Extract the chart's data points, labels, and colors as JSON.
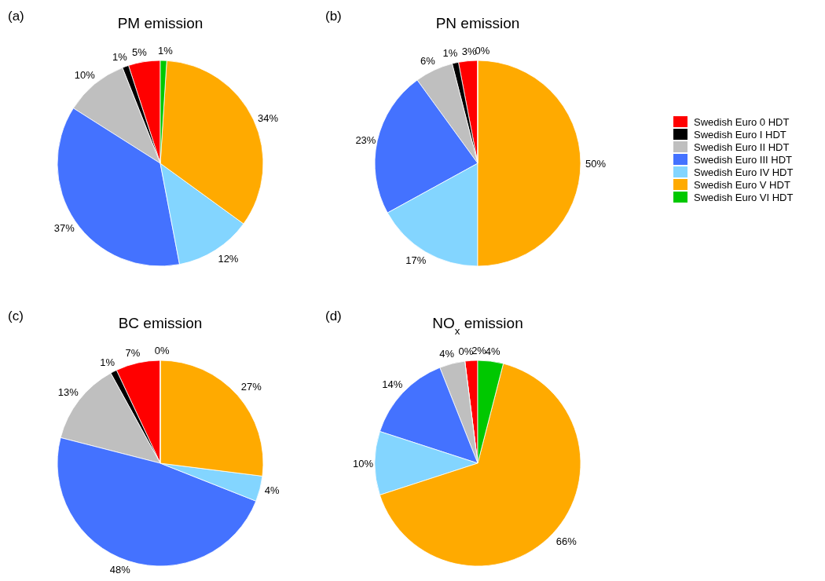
{
  "chart_data": [
    {
      "type": "pie",
      "title": "PM emission",
      "annotations": [
        "(a)"
      ],
      "categories": [
        null,
        null,
        null,
        null,
        null,
        null,
        null
      ],
      "values": [
        5,
        1,
        10,
        37,
        12,
        34,
        1
      ],
      "value_labels": [
        "5%",
        "1%",
        "10%",
        "37%",
        "12%",
        "34%",
        "1%"
      ],
      "colors": [
        "#ff0000",
        "#000000",
        "#bfbfbf",
        "#4472ff",
        "#83d5ff",
        "#ffaa00",
        "#00c800"
      ]
    },
    {
      "type": "pie",
      "title": "PN emission",
      "annotations": [
        "(b)"
      ],
      "legend": "right",
      "categories": [
        "Swedish Euro 0 HDT",
        "Swedish Euro I HDT",
        "Swedish Euro II HDT",
        "Swedish Euro III HDT",
        "Swedish Euro IV HDT",
        "Swedish Euro V HDT",
        "Swedish Euro VI HDT"
      ],
      "values": [
        3,
        1,
        6,
        23,
        17,
        50,
        0
      ],
      "value_labels": [
        "3%",
        "1%",
        "6%",
        "23%",
        "17%",
        "50%",
        "0%"
      ],
      "colors": [
        "#ff0000",
        "#000000",
        "#bfbfbf",
        "#4472ff",
        "#83d5ff",
        "#ffaa00",
        "#00c800"
      ]
    },
    {
      "type": "pie",
      "title": "BC emission",
      "annotations": [
        "(c)"
      ],
      "categories": [
        null,
        null,
        null,
        null,
        null,
        null,
        null
      ],
      "values": [
        7,
        1,
        13,
        48,
        4,
        27,
        0
      ],
      "value_labels": [
        "7%",
        "1%",
        "13%",
        "48%",
        "4%",
        "27%",
        "0%"
      ],
      "colors": [
        "#ff0000",
        "#000000",
        "#bfbfbf",
        "#4472ff",
        "#83d5ff",
        "#ffaa00",
        "#00c800"
      ]
    },
    {
      "type": "pie",
      "title": "NO$_{x}$ emission",
      "annotations": [
        "(d)"
      ],
      "categories": [
        null,
        null,
        null,
        null,
        null,
        null,
        null
      ],
      "values": [
        2,
        0,
        4,
        14,
        10,
        66,
        4
      ],
      "value_labels": [
        "2%",
        "0%",
        "4%",
        "14%",
        "10%",
        "66%",
        "4%"
      ],
      "colors": [
        "#ff0000",
        "#000000",
        "#bfbfbf",
        "#4472ff",
        "#83d5ff",
        "#ffaa00",
        "#00c800"
      ]
    }
  ]
}
